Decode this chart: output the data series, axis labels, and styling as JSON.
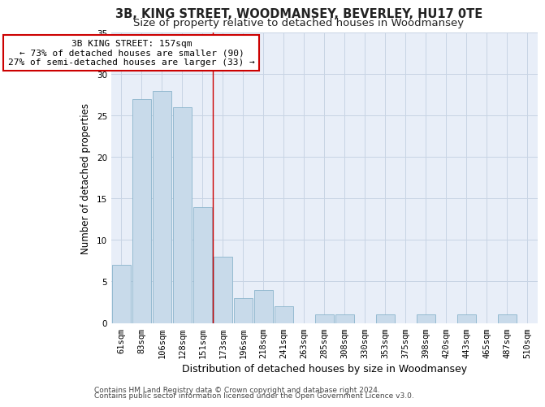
{
  "title1": "3B, KING STREET, WOODMANSEY, BEVERLEY, HU17 0TE",
  "title2": "Size of property relative to detached houses in Woodmansey",
  "xlabel": "Distribution of detached houses by size in Woodmansey",
  "ylabel": "Number of detached properties",
  "categories": [
    "61sqm",
    "83sqm",
    "106sqm",
    "128sqm",
    "151sqm",
    "173sqm",
    "196sqm",
    "218sqm",
    "241sqm",
    "263sqm",
    "285sqm",
    "308sqm",
    "330sqm",
    "353sqm",
    "375sqm",
    "398sqm",
    "420sqm",
    "443sqm",
    "465sqm",
    "487sqm",
    "510sqm"
  ],
  "values": [
    7,
    27,
    28,
    26,
    14,
    8,
    3,
    4,
    2,
    0,
    1,
    1,
    0,
    1,
    0,
    1,
    0,
    1,
    0,
    1,
    0
  ],
  "bar_color": "#c8daea",
  "bar_edge_color": "#8ab4cc",
  "grid_color": "#c8d4e4",
  "background_color": "#e8eef8",
  "ann_line1": "3B KING STREET: 157sqm",
  "ann_line2": "← 73% of detached houses are smaller (90)",
  "ann_line3": "27% of semi-detached houses are larger (33) →",
  "vline_x": 4.5,
  "ylim": [
    0,
    35
  ],
  "yticks": [
    0,
    5,
    10,
    15,
    20,
    25,
    30,
    35
  ],
  "footer1": "Contains HM Land Registry data © Crown copyright and database right 2024.",
  "footer2": "Contains public sector information licensed under the Open Government Licence v3.0.",
  "title1_fontsize": 10.5,
  "title2_fontsize": 9.5,
  "xlabel_fontsize": 9,
  "ylabel_fontsize": 8.5,
  "tick_fontsize": 7.5,
  "ann_fontsize": 8,
  "footer_fontsize": 6.5
}
